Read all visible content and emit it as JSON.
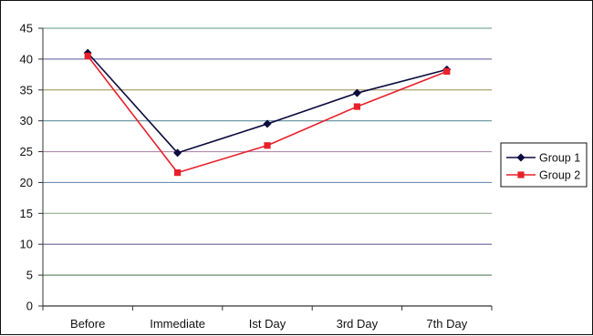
{
  "chart_data": {
    "type": "line",
    "categories": [
      "Before",
      "Immediate",
      "Ist Day",
      "3rd Day",
      "7th Day"
    ],
    "series": [
      {
        "name": "Group 1",
        "values": [
          41.0,
          24.8,
          29.5,
          34.5,
          38.3
        ],
        "color": "#0b0b3d",
        "marker": "diamond"
      },
      {
        "name": "Group 2",
        "values": [
          40.5,
          21.6,
          26.0,
          32.3,
          38.0
        ],
        "color": "#e8202a",
        "marker": "square"
      }
    ],
    "ylim": [
      0,
      45
    ],
    "yticks": [
      0,
      5,
      10,
      15,
      20,
      25,
      30,
      35,
      40,
      45
    ],
    "grid": true,
    "legend_position": "right"
  }
}
